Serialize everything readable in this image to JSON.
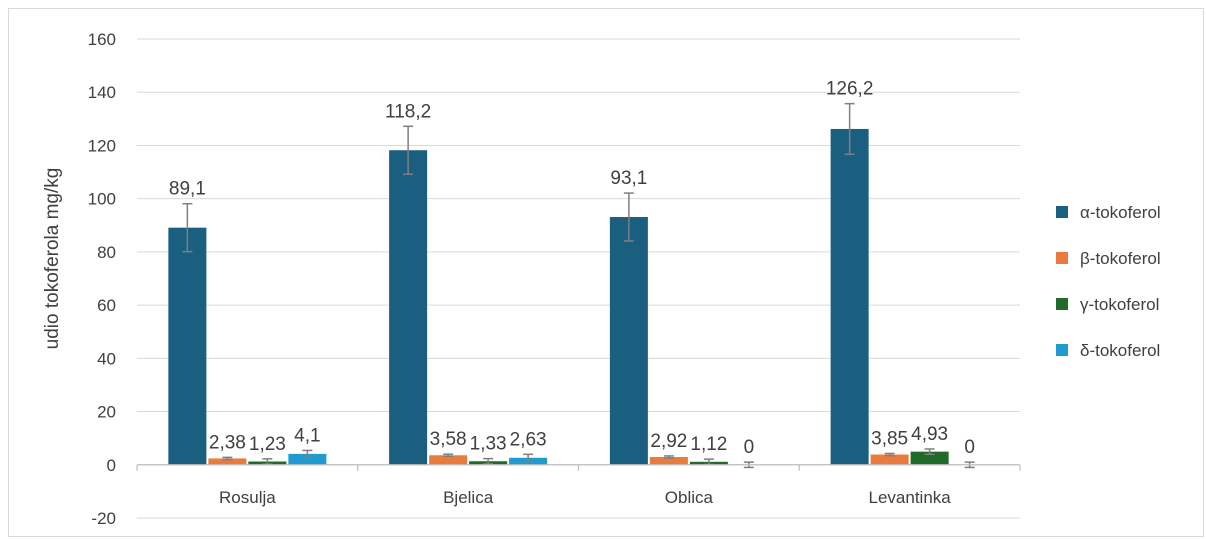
{
  "chart_data": {
    "type": "bar",
    "categories": [
      "Rosulja",
      "Bjelica",
      "Oblica",
      "Levantinka"
    ],
    "series": [
      {
        "name": "α-tokoferol",
        "color": "#1a5e80",
        "values": [
          89.1,
          118.2,
          93.1,
          126.2
        ],
        "labels": [
          "89,1",
          "118,2",
          "93,1",
          "126,2"
        ],
        "errors": [
          9,
          9,
          9,
          9.5
        ]
      },
      {
        "name": "β-tokoferol",
        "color": "#e97b3c",
        "values": [
          2.38,
          3.58,
          2.92,
          3.85
        ],
        "labels": [
          "2,38",
          "3,58",
          "2,92",
          "3,85"
        ],
        "errors": [
          0.4,
          0.4,
          0.4,
          0.4
        ]
      },
      {
        "name": "γ-tokoferol",
        "color": "#1e6b2a",
        "values": [
          1.23,
          1.33,
          1.12,
          4.93
        ],
        "labels": [
          "1,23",
          "1,33",
          "1,12",
          "4,93"
        ],
        "errors": [
          1,
          1,
          1,
          1
        ]
      },
      {
        "name": "δ-tokoferol",
        "color": "#1f9bd0",
        "values": [
          4.1,
          2.63,
          0,
          0
        ],
        "labels": [
          "4,1",
          "2,63",
          "0",
          "0"
        ],
        "errors": [
          1.3,
          1.3,
          1,
          1
        ]
      }
    ],
    "ylabel": "udio tokoferola mg/kg",
    "xlabel": "",
    "title": "",
    "ylim": [
      -20,
      160
    ],
    "yticks": [
      "-20",
      "0",
      "20",
      "40",
      "60",
      "80",
      "100",
      "120",
      "140",
      "160"
    ],
    "ytick_values": [
      -20,
      0,
      20,
      40,
      60,
      80,
      100,
      120,
      140,
      160
    ],
    "grid": true,
    "legend_position": "right"
  }
}
